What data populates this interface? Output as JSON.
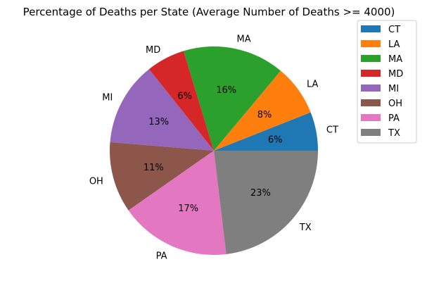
{
  "chart_data": {
    "type": "pie",
    "title": "Percentage of Deaths per State (Average Number of Deaths >= 4000)",
    "categories": [
      "CT",
      "LA",
      "MA",
      "MD",
      "MI",
      "OH",
      "PA",
      "TX"
    ],
    "values": [
      6.0,
      7.9,
      15.8,
      6.0,
      13.0,
      11.0,
      17.2,
      23.1
    ],
    "percent_labels": [
      "6%",
      "8%",
      "16%",
      "6%",
      "13%",
      "11%",
      "17%",
      "23%"
    ],
    "colors": [
      "#1f77b4",
      "#ff7f0e",
      "#2ca02c",
      "#d62728",
      "#9467bd",
      "#8c564b",
      "#e377c2",
      "#7f7f7f"
    ],
    "start_angle_deg": 0,
    "direction": "counterclockwise",
    "legend": {
      "placement": "upper-right-outside",
      "entries": [
        "CT",
        "LA",
        "MA",
        "MD",
        "MI",
        "OH",
        "PA",
        "TX"
      ]
    }
  }
}
